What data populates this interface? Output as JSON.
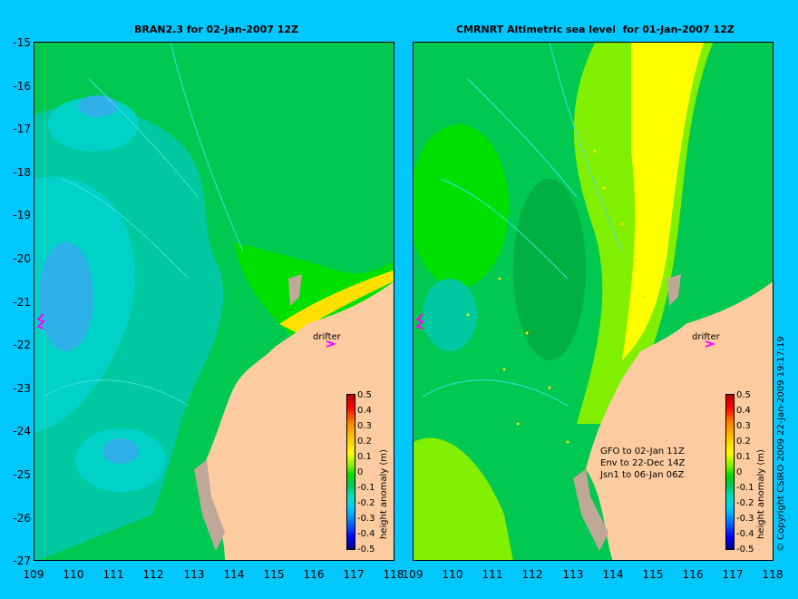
{
  "left_panel": {
    "title": "BRAN2.3 for 02-Jan-2007 12Z",
    "drifter_label": "drifter"
  },
  "right_panel": {
    "title": "CMRNRT Altimetric sea level  for 01-Jan-2007 12Z",
    "drifter_label": "drifter",
    "annotations": [
      "GFO to 02-Jan 11Z",
      "Env to 22-Dec 14Z",
      "Jsn1 to 06-Jan 06Z"
    ]
  },
  "axes": {
    "lat_ticks": [
      "-15",
      "-16",
      "-17",
      "-18",
      "-19",
      "-20",
      "-21",
      "-22",
      "-23",
      "-24",
      "-25",
      "-26",
      "-27"
    ],
    "lon_ticks": [
      "109",
      "110",
      "111",
      "112",
      "113",
      "114",
      "115",
      "116",
      "117",
      "118"
    ]
  },
  "colorbar": {
    "label": "height anomaly (m)",
    "ticks": [
      "0.5",
      "0.4",
      "0.3",
      "0.2",
      "0.1",
      "0",
      "-0.1",
      "-0.2",
      "-0.3",
      "-0.4",
      "-0.5"
    ],
    "colors": [
      "#00008c",
      "#0000ff",
      "#0064ff",
      "#00c8ff",
      "#00e0c0",
      "#00c850",
      "#00e000",
      "#80f000",
      "#ffff00",
      "#ffc800",
      "#ff8000",
      "#ff0000",
      "#b40000"
    ]
  },
  "copyright": "© Copyright CSIRO 2009  22-Jan-2009 19:17:19",
  "colors": {
    "background": "#00c8ff",
    "land": "#fccca0",
    "coast_gray": "#c0a898",
    "drifter": "#ff00ff"
  }
}
